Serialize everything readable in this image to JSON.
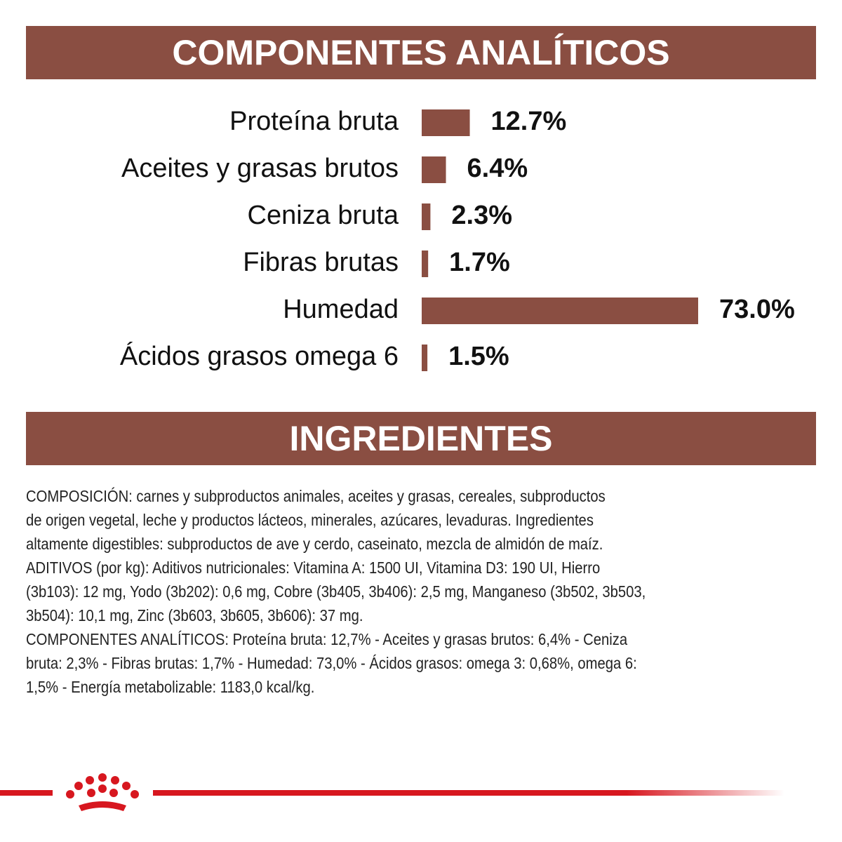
{
  "header": {
    "title": "COMPONENTES ANALÍTICOS"
  },
  "chart_data": {
    "type": "bar",
    "orientation": "horizontal",
    "categories": [
      "Proteína bruta",
      "Aceites y grasas brutos",
      "Ceniza bruta",
      "Fibras brutas",
      "Humedad",
      "Ácidos grasos omega 6"
    ],
    "values": [
      12.7,
      6.4,
      2.3,
      1.7,
      73.0,
      1.5
    ],
    "value_labels": [
      "12.7%",
      "6.4%",
      "2.3%",
      "1.7%",
      "73.0%",
      "1.5%"
    ],
    "color": "#8a4e42"
  },
  "ingredients": {
    "title": "INGREDIENTES",
    "lines": [
      "COMPOSICIÓN: carnes y subproductos animales, aceites y grasas, cereales, subproductos",
      "de origen vegetal, leche y productos lácteos, minerales, azúcares, levaduras. Ingredientes",
      "altamente digestibles: subproductos de ave y cerdo, caseinato, mezcla de almidón de maíz.",
      "ADITIVOS (por kg): Aditivos nutricionales: Vitamina A: 1500 UI, Vitamina D3: 190 UI, Hierro",
      "(3b103): 12 mg, Yodo (3b202): 0,6 mg, Cobre (3b405, 3b406): 2,5 mg, Manganeso (3b502, 3b503,",
      "3b504): 10,1 mg, Zinc (3b603, 3b605, 3b606): 37 mg.",
      "COMPONENTES ANALÍTICOS: Proteína bruta: 12,7% - Aceites y grasas brutos: 6,4% - Ceniza",
      "bruta: 2,3% - Fibras brutas: 1,7% - Humedad: 73,0% - Ácidos grasos: omega 3: 0,68%, omega 6:",
      "1,5% - Energía metabolizable: 1183,0 kcal/kg."
    ]
  }
}
